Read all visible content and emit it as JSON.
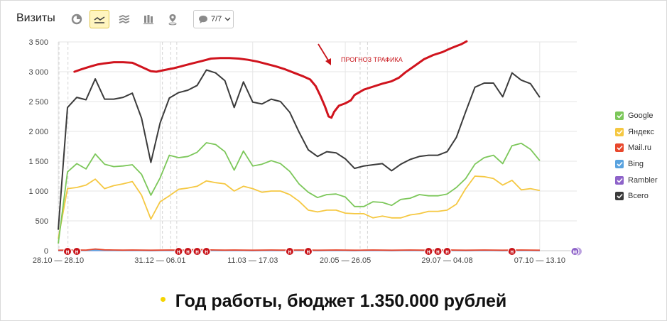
{
  "toolbar": {
    "title": "Визиты",
    "counter": "7/7",
    "buttons": [
      {
        "name": "pie-chart-icon",
        "active": false
      },
      {
        "name": "line-chart-icon",
        "active": true
      },
      {
        "name": "area-chart-icon",
        "active": false
      },
      {
        "name": "bar-chart-icon",
        "active": false
      },
      {
        "name": "map-pin-icon",
        "active": false
      }
    ]
  },
  "colors": {
    "google": "#7cc75a",
    "yandex": "#f5c842",
    "mail": "#e8472c",
    "bing": "#5aa3df",
    "rambler": "#8e63c9",
    "total": "#3b3b3b",
    "forecast": "#d0131d",
    "marker": "#c8141a",
    "marker_m": "#8e63c9",
    "caption_bullet": "#f5d400"
  },
  "legend": [
    {
      "name": "Google",
      "key": "google"
    },
    {
      "name": "Яндекс",
      "key": "yandex"
    },
    {
      "name": "Mail.ru",
      "key": "mail"
    },
    {
      "name": "Bing",
      "key": "bing"
    },
    {
      "name": "Rambler",
      "key": "rambler"
    },
    {
      "name": "Всего",
      "key": "total"
    }
  ],
  "annotation": "ПРОГНОЗ ТРАФИКА",
  "caption": "Год работы, бюджет 1.350.000 рублей",
  "markers": {
    "labels": [
      "н",
      "м"
    ],
    "n_positions": [
      1,
      2,
      13,
      14,
      15,
      16,
      25,
      27,
      40,
      41,
      42,
      49
    ],
    "m_position": 55.8
  },
  "chart_data": {
    "type": "line",
    "y_ticks": [
      0,
      500,
      1000,
      1500,
      2000,
      2500,
      3000,
      3500
    ],
    "y_tick_labels": [
      "0",
      "500",
      "1 000",
      "1 500",
      "2 000",
      "2 500",
      "3 000",
      "3 500"
    ],
    "ylim": [
      0,
      3500
    ],
    "x_count": 57,
    "x_labels": [
      {
        "i": 0,
        "label": "28.10 — 28.10"
      },
      {
        "i": 11,
        "label": "31.12 — 06.01"
      },
      {
        "i": 21,
        "label": "11.03 — 17.03"
      },
      {
        "i": 31,
        "label": "20.05 — 26.05"
      },
      {
        "i": 42,
        "label": "29.07 — 04.08"
      },
      {
        "i": 52,
        "label": "07.10 — 13.10"
      }
    ],
    "weekly_gridlines": [
      0.08,
      1.05,
      11.25,
      12.15,
      12.8,
      32.6,
      33.4
    ],
    "series": [
      {
        "name": "Всего",
        "key": "total",
        "values": [
          350,
          2400,
          2570,
          2530,
          2880,
          2540,
          2540,
          2570,
          2640,
          2220,
          1480,
          2140,
          2560,
          2650,
          2690,
          2770,
          3030,
          2980,
          2850,
          2400,
          2830,
          2490,
          2460,
          2540,
          2500,
          2320,
          1990,
          1690,
          1580,
          1660,
          1640,
          1540,
          1380,
          1420,
          1440,
          1460,
          1340,
          1450,
          1530,
          1580,
          1600,
          1600,
          1660,
          1900,
          2330,
          2740,
          2810,
          2810,
          2580,
          2980,
          2860,
          2800,
          2570
        ]
      },
      {
        "name": "Google",
        "key": "google",
        "values": [
          120,
          1320,
          1460,
          1370,
          1620,
          1450,
          1410,
          1420,
          1440,
          1280,
          930,
          1220,
          1600,
          1560,
          1580,
          1650,
          1810,
          1780,
          1660,
          1350,
          1670,
          1420,
          1450,
          1510,
          1460,
          1330,
          1120,
          980,
          890,
          940,
          950,
          900,
          740,
          740,
          820,
          810,
          760,
          860,
          880,
          940,
          920,
          920,
          950,
          1060,
          1210,
          1450,
          1560,
          1600,
          1460,
          1760,
          1800,
          1700,
          1510
        ]
      },
      {
        "name": "Яндекс",
        "key": "yandex",
        "values": [
          200,
          1040,
          1060,
          1100,
          1200,
          1040,
          1090,
          1120,
          1160,
          930,
          530,
          820,
          920,
          1030,
          1050,
          1080,
          1170,
          1140,
          1120,
          1000,
          1080,
          1040,
          980,
          1000,
          1000,
          940,
          830,
          680,
          650,
          680,
          680,
          630,
          620,
          620,
          550,
          580,
          550,
          550,
          600,
          620,
          660,
          660,
          680,
          780,
          1040,
          1250,
          1240,
          1210,
          1100,
          1180,
          1020,
          1040,
          1010
        ]
      },
      {
        "name": "Mail.ru",
        "key": "mail",
        "values": [
          8,
          10,
          12,
          10,
          28,
          14,
          12,
          10,
          12,
          10,
          8,
          10,
          12,
          10,
          12,
          22,
          14,
          12,
          10,
          12,
          10,
          8,
          10,
          12,
          10,
          10,
          12,
          10,
          8,
          10,
          12,
          10,
          8,
          10,
          12,
          10,
          8,
          10,
          12,
          10,
          8,
          10,
          12,
          10,
          8,
          10,
          12,
          10,
          8,
          10,
          12,
          10,
          8
        ]
      },
      {
        "name": "Bing",
        "key": "bing",
        "values": [
          4,
          5,
          6,
          5,
          8,
          6,
          5,
          5,
          6,
          5,
          4,
          5,
          6,
          5,
          6,
          8,
          6,
          5,
          5,
          6,
          5,
          4,
          5,
          6,
          5,
          5,
          6,
          5,
          4,
          5,
          6,
          5,
          4,
          5,
          6,
          5,
          4,
          5,
          6,
          5,
          4,
          5,
          6,
          5,
          4,
          5,
          6,
          5,
          4,
          5,
          6,
          5,
          4
        ]
      },
      {
        "name": "Rambler",
        "key": "rambler",
        "values": [
          2,
          3,
          3,
          3,
          4,
          3,
          3,
          3,
          3,
          3,
          2,
          3,
          3,
          3,
          3,
          4,
          3,
          3,
          3,
          3,
          3,
          2,
          3,
          3,
          3,
          3,
          3,
          3,
          2,
          3,
          3,
          3,
          2,
          3,
          3,
          3,
          2,
          3,
          3,
          3,
          2,
          3,
          3,
          3,
          2,
          3,
          3,
          3,
          2,
          3,
          3,
          3,
          2
        ]
      }
    ],
    "forecast": {
      "name": "ПРОГНОЗ ТРАФИКА",
      "points": [
        [
          1.75,
          3000
        ],
        [
          2.5,
          3040
        ],
        [
          3.3,
          3080
        ],
        [
          4.2,
          3120
        ],
        [
          5.0,
          3140
        ],
        [
          6.0,
          3160
        ],
        [
          7.0,
          3160
        ],
        [
          8.0,
          3150
        ],
        [
          9.0,
          3080
        ],
        [
          10.0,
          3010
        ],
        [
          10.6,
          3000
        ],
        [
          11.5,
          3030
        ],
        [
          12.5,
          3060
        ],
        [
          13.5,
          3100
        ],
        [
          14.5,
          3140
        ],
        [
          15.5,
          3180
        ],
        [
          16.5,
          3220
        ],
        [
          17.5,
          3230
        ],
        [
          18.5,
          3230
        ],
        [
          19.5,
          3220
        ],
        [
          20.5,
          3200
        ],
        [
          21.5,
          3170
        ],
        [
          22.5,
          3130
        ],
        [
          23.5,
          3090
        ],
        [
          24.5,
          3040
        ],
        [
          25.5,
          2980
        ],
        [
          26.5,
          2920
        ],
        [
          27.2,
          2870
        ],
        [
          27.8,
          2760
        ],
        [
          28.3,
          2600
        ],
        [
          28.8,
          2420
        ],
        [
          29.2,
          2250
        ],
        [
          29.5,
          2230
        ],
        [
          29.8,
          2330
        ],
        [
          30.3,
          2430
        ],
        [
          31.0,
          2470
        ],
        [
          31.6,
          2520
        ],
        [
          32.0,
          2610
        ],
        [
          33.0,
          2700
        ],
        [
          34.0,
          2750
        ],
        [
          35.0,
          2800
        ],
        [
          36.0,
          2840
        ],
        [
          36.8,
          2900
        ],
        [
          37.5,
          2990
        ],
        [
          38.5,
          3100
        ],
        [
          39.5,
          3210
        ],
        [
          40.5,
          3280
        ],
        [
          41.5,
          3330
        ],
        [
          42.2,
          3380
        ],
        [
          43.0,
          3430
        ],
        [
          43.5,
          3460
        ],
        [
          44.1,
          3510
        ]
      ]
    }
  }
}
